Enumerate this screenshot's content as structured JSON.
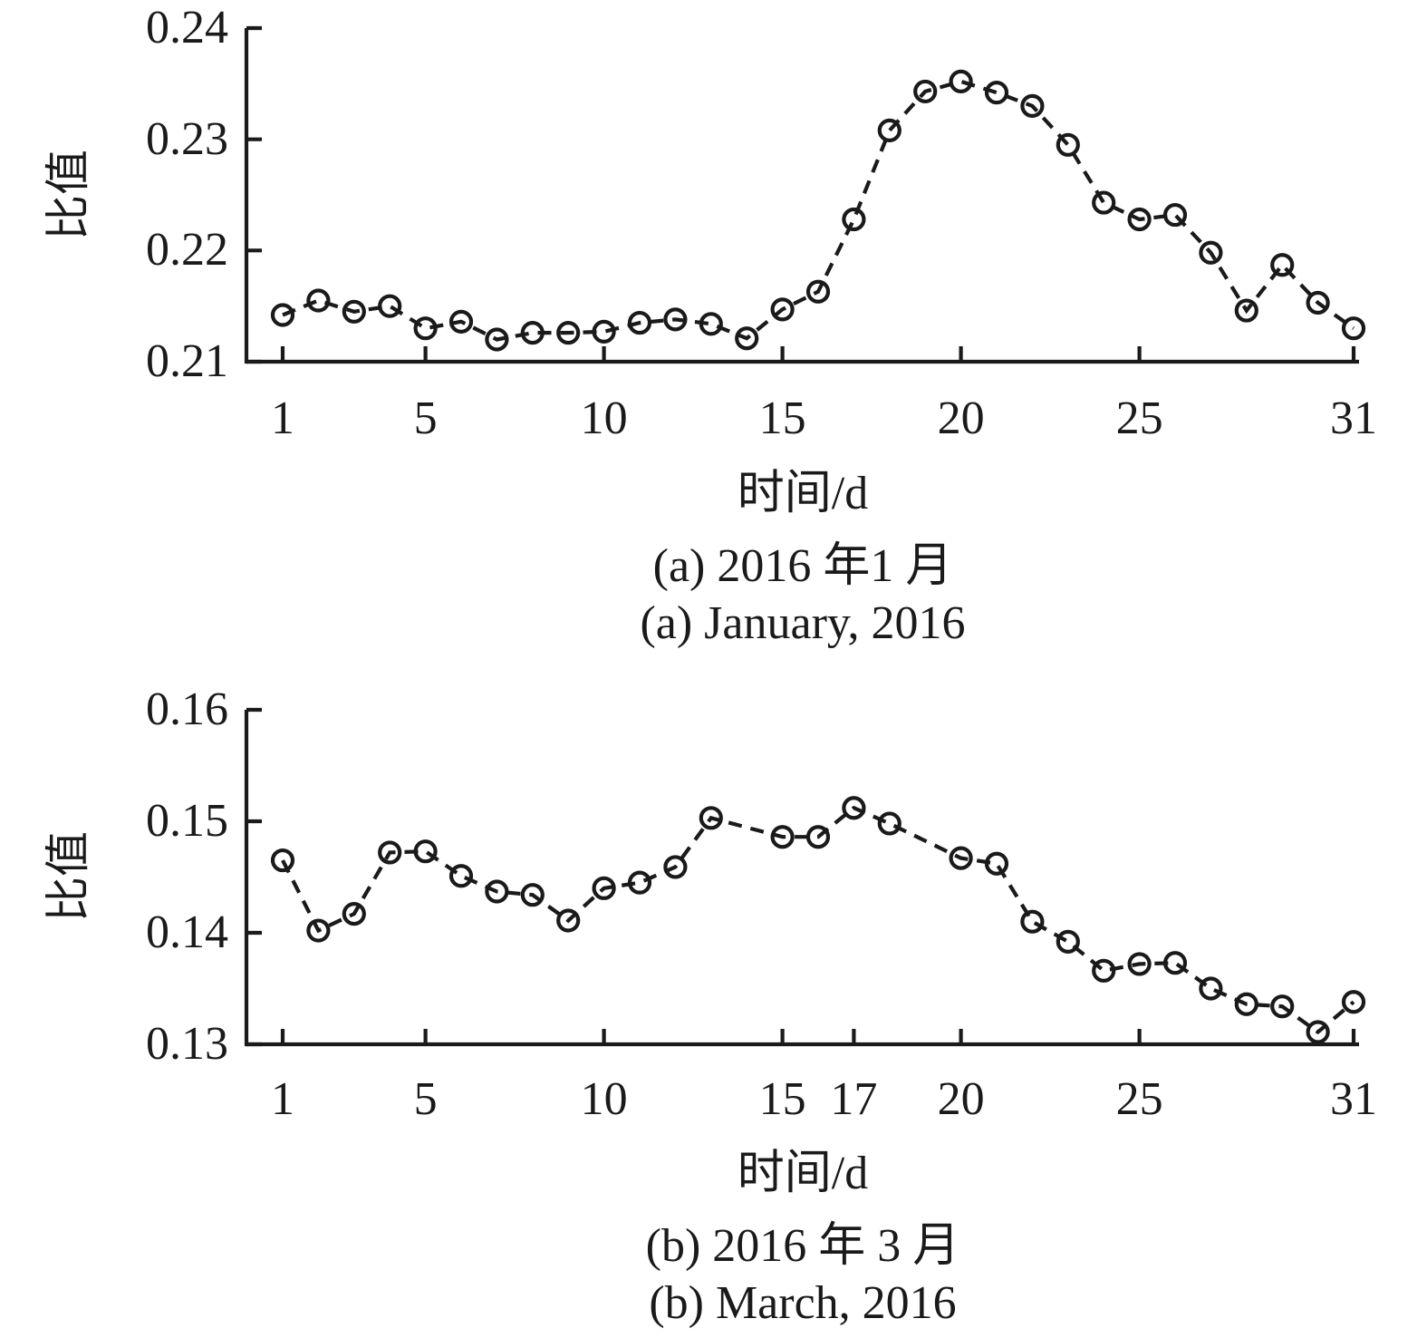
{
  "page": {
    "background": "#ffffff",
    "ink_color": "#1a1a1a"
  },
  "chart_data": [
    {
      "type": "line",
      "series_style": "dashed line with open circle markers",
      "title_zh": "(a) 2016 年1 月",
      "title_en": "(a) January, 2016",
      "xlabel": "时间/d",
      "ylabel": "比值",
      "x": [
        1,
        2,
        3,
        4,
        5,
        6,
        7,
        8,
        9,
        10,
        11,
        12,
        13,
        14,
        15,
        16,
        17,
        18,
        19,
        20,
        21,
        22,
        23,
        24,
        25,
        26,
        27,
        28,
        29,
        30,
        31
      ],
      "y": [
        0.2142,
        0.2155,
        0.2145,
        0.215,
        0.213,
        0.2136,
        0.212,
        0.2126,
        0.2126,
        0.2127,
        0.2135,
        0.2138,
        0.2134,
        0.2121,
        0.2147,
        0.2163,
        0.2228,
        0.2308,
        0.2343,
        0.2352,
        0.2342,
        0.233,
        0.2295,
        0.2243,
        0.2228,
        0.2232,
        0.2198,
        0.2146,
        0.2187,
        0.2153,
        0.213
      ],
      "xlim": [
        1,
        31
      ],
      "ylim": [
        0.21,
        0.24
      ],
      "xtick_days": [
        1,
        5,
        10,
        15,
        20,
        25,
        31
      ],
      "xtick_labels": [
        "1",
        "5",
        "10",
        "15",
        "20",
        "25",
        "31"
      ],
      "ytick_values": [
        0.21,
        0.22,
        0.23,
        0.24
      ],
      "ytick_labels": [
        "0.21",
        "0.22",
        "0.23",
        "0.24"
      ],
      "grid": false,
      "legend": "none",
      "line_color": "#1a1a1a",
      "marker_fill": "#ffffff"
    },
    {
      "type": "line",
      "series_style": "dashed line with open circle markers",
      "title_zh": "(b) 2016 年 3 月",
      "title_en": "(b) March, 2016",
      "xlabel": "时间/d",
      "ylabel": "比值",
      "x": [
        1,
        2,
        3,
        4,
        5,
        6,
        7,
        8,
        9,
        10,
        11,
        12,
        13,
        15,
        16,
        17,
        18,
        20,
        21,
        22,
        23,
        24,
        25,
        26,
        27,
        28,
        29,
        30,
        31
      ],
      "y": [
        0.1465,
        0.1402,
        0.1417,
        0.1472,
        0.1473,
        0.1451,
        0.1437,
        0.1434,
        0.1411,
        0.144,
        0.1445,
        0.1459,
        0.1503,
        0.1486,
        0.1486,
        0.1512,
        0.1498,
        0.1467,
        0.1462,
        0.141,
        0.1392,
        0.1366,
        0.1372,
        0.1373,
        0.135,
        0.1336,
        0.1334,
        0.1311,
        0.1338
      ],
      "xlim": [
        1,
        31
      ],
      "ylim": [
        0.13,
        0.16
      ],
      "xtick_days": [
        1,
        5,
        10,
        15,
        17,
        20,
        25,
        31
      ],
      "xtick_labels": [
        "1",
        "5",
        "10",
        "15",
        "17",
        "20",
        "25",
        "31"
      ],
      "ytick_values": [
        0.13,
        0.14,
        0.15,
        0.16
      ],
      "ytick_labels": [
        "0.13",
        "0.14",
        "0.15",
        "0.16"
      ],
      "grid": false,
      "legend": "none",
      "line_color": "#1a1a1a",
      "marker_fill": "#ffffff"
    }
  ]
}
